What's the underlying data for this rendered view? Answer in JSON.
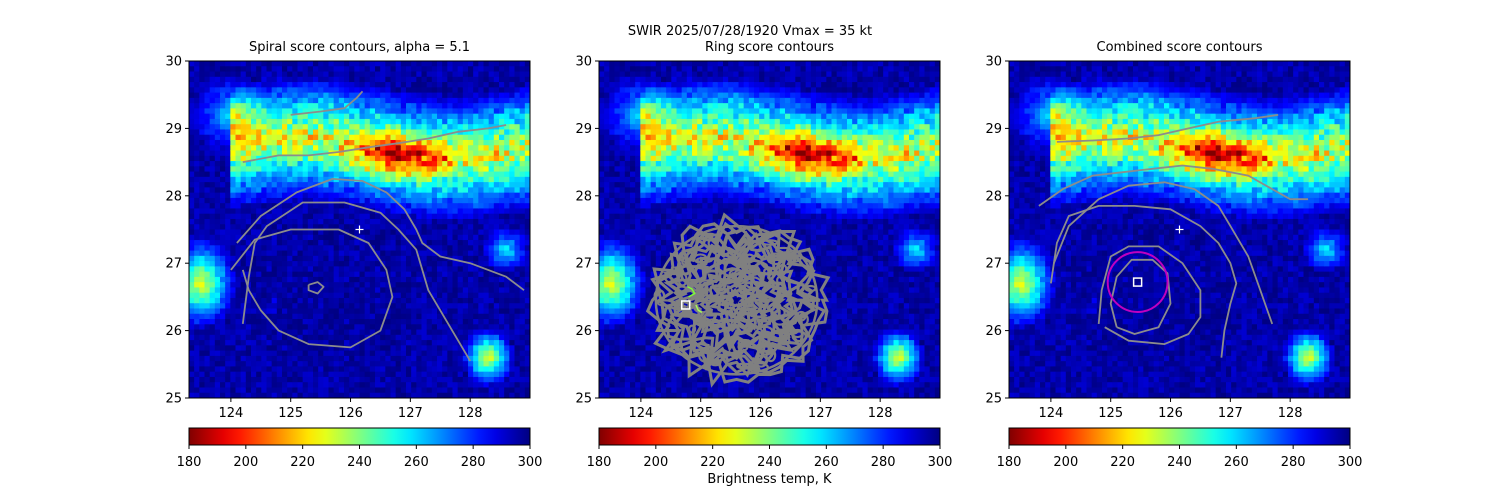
{
  "suptitle": "SWIR  2025/07/28/1920    Vmax = 35 kt",
  "xlabel": "Brightness temp, K",
  "chart_data": [
    {
      "type": "heatmap",
      "title": "Spiral score contours, alpha =  5.1",
      "xlim": [
        123.3,
        129.0
      ],
      "ylim": [
        25,
        30
      ],
      "xticks": [
        "124",
        "125",
        "126",
        "127",
        "128"
      ],
      "yticks": [
        "25",
        "26",
        "27",
        "28",
        "29",
        "30"
      ],
      "colorbar": {
        "ticks": [
          "180",
          "200",
          "220",
          "240",
          "260",
          "280",
          "300"
        ],
        "range": [
          180,
          300
        ],
        "cmap": "jet_r"
      },
      "storm_center": {
        "lon": 126.15,
        "lat": 27.5,
        "marker": "plus",
        "color": "#ffffff"
      },
      "contours": [
        {
          "level": "inner",
          "points": [
            [
              125.3,
              26.68
            ],
            [
              125.45,
              26.72
            ],
            [
              125.55,
              26.65
            ],
            [
              125.45,
              26.55
            ],
            [
              125.3,
              26.6
            ],
            [
              125.3,
              26.68
            ]
          ]
        },
        {
          "level": "middle",
          "points": [
            [
              124.0,
              26.9
            ],
            [
              124.4,
              27.35
            ],
            [
              125.0,
              27.5
            ],
            [
              125.8,
              27.5
            ],
            [
              126.3,
              27.3
            ],
            [
              126.6,
              26.9
            ],
            [
              126.7,
              26.5
            ],
            [
              126.5,
              26.0
            ],
            [
              126.0,
              25.75
            ],
            [
              125.3,
              25.8
            ],
            [
              124.8,
              26.0
            ],
            [
              124.5,
              26.3
            ],
            [
              124.3,
              26.6
            ],
            [
              124.2,
              26.9
            ]
          ]
        },
        {
          "level": "outer",
          "points": [
            [
              124.2,
              26.1
            ],
            [
              124.3,
              26.8
            ],
            [
              124.4,
              27.3
            ],
            [
              124.6,
              27.55
            ],
            [
              125.2,
              27.9
            ],
            [
              125.9,
              27.9
            ],
            [
              126.5,
              27.75
            ],
            [
              126.8,
              27.5
            ],
            [
              127.1,
              27.2
            ],
            [
              127.2,
              26.9
            ],
            [
              127.3,
              26.6
            ],
            [
              127.5,
              26.3
            ],
            [
              127.7,
              26.0
            ],
            [
              128.0,
              25.55
            ]
          ]
        },
        {
          "level": "band",
          "points": [
            [
              124.1,
              27.3
            ],
            [
              124.5,
              27.7
            ],
            [
              125.1,
              28.05
            ],
            [
              125.7,
              28.25
            ],
            [
              126.2,
              28.22
            ],
            [
              126.6,
              28.05
            ],
            [
              126.9,
              27.8
            ],
            [
              127.1,
              27.5
            ],
            [
              127.2,
              27.3
            ],
            [
              127.5,
              27.1
            ],
            [
              128.0,
              27.0
            ],
            [
              128.6,
              26.8
            ],
            [
              128.9,
              26.6
            ]
          ]
        },
        {
          "level": "band",
          "points": [
            [
              124.2,
              28.5
            ],
            [
              124.8,
              28.6
            ],
            [
              125.3,
              28.6
            ],
            [
              125.8,
              28.65
            ],
            [
              126.3,
              28.72
            ],
            [
              126.8,
              28.78
            ],
            [
              127.3,
              28.85
            ],
            [
              127.8,
              28.95
            ],
            [
              128.3,
              29.0
            ],
            [
              128.6,
              29.05
            ]
          ]
        },
        {
          "level": "band",
          "points": [
            [
              125.0,
              29.2
            ],
            [
              125.5,
              29.25
            ],
            [
              125.9,
              29.3
            ],
            [
              126.1,
              29.45
            ],
            [
              126.2,
              29.55
            ]
          ]
        }
      ]
    },
    {
      "type": "heatmap",
      "title": "Ring score contours",
      "xlim": [
        123.3,
        129.0
      ],
      "ylim": [
        25,
        30
      ],
      "xticks": [
        "124",
        "125",
        "126",
        "127",
        "128"
      ],
      "yticks": [
        "25",
        "26",
        "27",
        "28",
        "29",
        "30"
      ],
      "colorbar": {
        "ticks": [
          "180",
          "200",
          "220",
          "240",
          "260",
          "280",
          "300"
        ],
        "range": [
          180,
          300
        ],
        "cmap": "jet_r"
      },
      "ring_region": {
        "lon": 125.6,
        "lat": 26.45,
        "rx": 1.35,
        "ry": 1.1
      },
      "best_center": {
        "lon": 124.75,
        "lat": 26.38,
        "marker": "square",
        "color": "#ffffff"
      },
      "minor_contours": [
        {
          "color": "#7dff35",
          "points": [
            [
              124.8,
              26.5
            ],
            [
              124.9,
              26.55
            ],
            [
              124.85,
              26.62
            ],
            [
              124.78,
              26.65
            ]
          ]
        },
        {
          "color": "#a3ff55",
          "points": [
            [
              124.92,
              26.38
            ],
            [
              124.96,
              26.3
            ],
            [
              125.02,
              26.27
            ]
          ]
        }
      ]
    },
    {
      "type": "heatmap",
      "title": "Combined score contours",
      "xlim": [
        123.3,
        129.0
      ],
      "ylim": [
        25,
        30
      ],
      "xticks": [
        "124",
        "125",
        "126",
        "127",
        "128"
      ],
      "yticks": [
        "25",
        "26",
        "27",
        "28",
        "29",
        "30"
      ],
      "colorbar": {
        "ticks": [
          "180",
          "200",
          "220",
          "240",
          "260",
          "280",
          "300"
        ],
        "range": [
          180,
          300
        ],
        "cmap": "jet_r"
      },
      "storm_center": {
        "lon": 126.15,
        "lat": 27.5,
        "marker": "plus",
        "color": "#ffffff"
      },
      "best_center": {
        "lon": 125.45,
        "lat": 26.72,
        "marker": "square",
        "color": "#ffffff"
      },
      "best_circle": {
        "lon": 125.45,
        "lat": 26.72,
        "radius_deg": 0.5,
        "color": "#c000c0"
      },
      "contours": [
        {
          "level": "inner",
          "points": [
            [
              125.1,
              26.05
            ],
            [
              125.4,
              25.95
            ],
            [
              125.8,
              26.05
            ],
            [
              126.0,
              26.4
            ],
            [
              125.95,
              26.85
            ],
            [
              125.7,
              27.05
            ],
            [
              125.35,
              27.05
            ],
            [
              125.1,
              26.8
            ],
            [
              125.0,
              26.4
            ],
            [
              125.1,
              26.05
            ]
          ]
        },
        {
          "level": "middle",
          "points": [
            [
              124.8,
              26.1
            ],
            [
              124.85,
              26.6
            ],
            [
              125.0,
              27.1
            ],
            [
              125.3,
              27.25
            ],
            [
              125.8,
              27.25
            ],
            [
              126.2,
              27.0
            ],
            [
              126.5,
              26.6
            ],
            [
              126.5,
              26.2
            ],
            [
              126.3,
              25.95
            ],
            [
              125.9,
              25.8
            ],
            [
              125.3,
              25.85
            ],
            [
              124.9,
              26.05
            ]
          ]
        },
        {
          "level": "outer",
          "points": [
            [
              124.05,
              27.0
            ],
            [
              124.3,
              27.55
            ],
            [
              124.8,
              27.95
            ],
            [
              125.3,
              28.15
            ],
            [
              125.9,
              28.2
            ],
            [
              126.4,
              28.1
            ],
            [
              126.8,
              27.85
            ],
            [
              127.0,
              27.55
            ],
            [
              127.3,
              27.1
            ],
            [
              127.5,
              26.6
            ],
            [
              127.6,
              26.35
            ],
            [
              127.7,
              26.1
            ]
          ]
        },
        {
          "level": "outer",
          "points": [
            [
              124.0,
              26.7
            ],
            [
              124.1,
              27.3
            ],
            [
              124.3,
              27.7
            ],
            [
              124.8,
              27.85
            ],
            [
              125.4,
              27.85
            ],
            [
              126.0,
              27.8
            ],
            [
              126.5,
              27.55
            ],
            [
              126.8,
              27.3
            ],
            [
              127.0,
              27.0
            ],
            [
              127.1,
              26.7
            ],
            [
              127.0,
              26.4
            ],
            [
              126.9,
              26.0
            ],
            [
              126.85,
              25.6
            ]
          ]
        },
        {
          "level": "band",
          "points": [
            [
              123.8,
              27.85
            ],
            [
              124.2,
              28.1
            ],
            [
              124.7,
              28.3
            ],
            [
              125.2,
              28.35
            ],
            [
              125.7,
              28.4
            ],
            [
              126.2,
              28.45
            ],
            [
              126.7,
              28.4
            ],
            [
              127.3,
              28.3
            ],
            [
              127.7,
              28.1
            ],
            [
              128.0,
              27.95
            ],
            [
              128.3,
              27.95
            ]
          ]
        },
        {
          "level": "band",
          "points": [
            [
              124.1,
              28.8
            ],
            [
              124.7,
              28.82
            ],
            [
              125.3,
              28.85
            ],
            [
              125.8,
              28.9
            ],
            [
              126.3,
              29.0
            ],
            [
              126.8,
              29.1
            ],
            [
              127.4,
              29.15
            ],
            [
              127.8,
              29.2
            ]
          ]
        }
      ]
    }
  ]
}
